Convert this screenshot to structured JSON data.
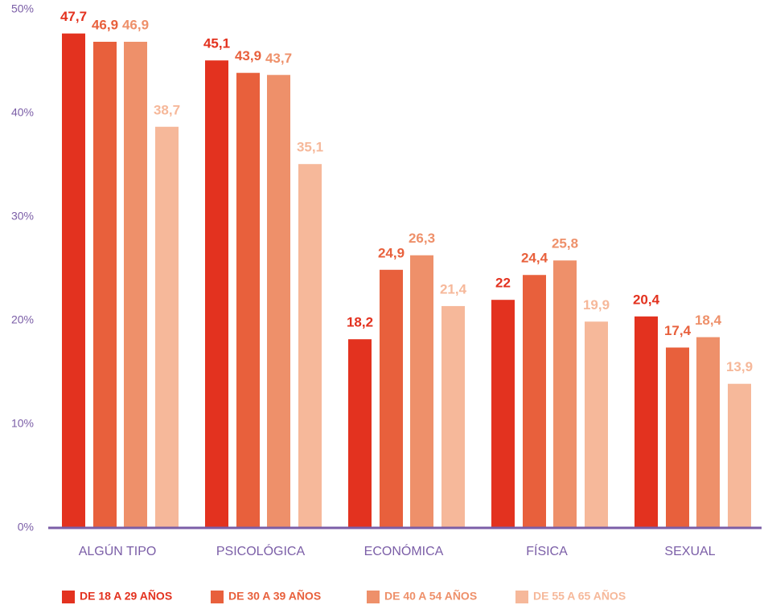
{
  "chart_data": {
    "type": "bar",
    "categories": [
      "ALGÚN TIPO",
      "PSICOLÓGICA",
      "ECONÓMICA",
      "FÍSICA",
      "SEXUAL"
    ],
    "series": [
      {
        "name": "DE 18 A 29 AÑOS",
        "color": "#e3321f",
        "values": [
          47.7,
          45.1,
          18.2,
          22,
          20.4
        ],
        "value_labels": [
          "47,7",
          "45,1",
          "18,2",
          "22",
          "20,4"
        ]
      },
      {
        "name": "DE 30 A 39 AÑOS",
        "color": "#e8603c",
        "values": [
          46.9,
          43.9,
          24.9,
          24.4,
          17.4
        ],
        "value_labels": [
          "46,9",
          "43,9",
          "24,9",
          "24,4",
          "17,4"
        ]
      },
      {
        "name": "DE 40 A 54 AÑOS",
        "color": "#ee906a",
        "values": [
          46.9,
          43.7,
          26.3,
          25.8,
          18.4
        ],
        "value_labels": [
          "46,9",
          "43,7",
          "26,3",
          "25,8",
          "18,4"
        ]
      },
      {
        "name": "DE 55 A 65 AÑOS",
        "color": "#f6b89a",
        "values": [
          38.7,
          35.1,
          21.4,
          19.9,
          13.9
        ],
        "value_labels": [
          "38,7",
          "35,1",
          "21,4",
          "19,9",
          "13,9"
        ]
      }
    ],
    "ylim": [
      0,
      50
    ],
    "yticks": [
      {
        "value": 0,
        "label": "0%"
      },
      {
        "value": 10,
        "label": "10%"
      },
      {
        "value": 20,
        "label": "20%"
      },
      {
        "value": 30,
        "label": "30%"
      },
      {
        "value": 40,
        "label": "40%"
      },
      {
        "value": 50,
        "label": "50%"
      }
    ],
    "grid": false,
    "legend": "bottom"
  }
}
